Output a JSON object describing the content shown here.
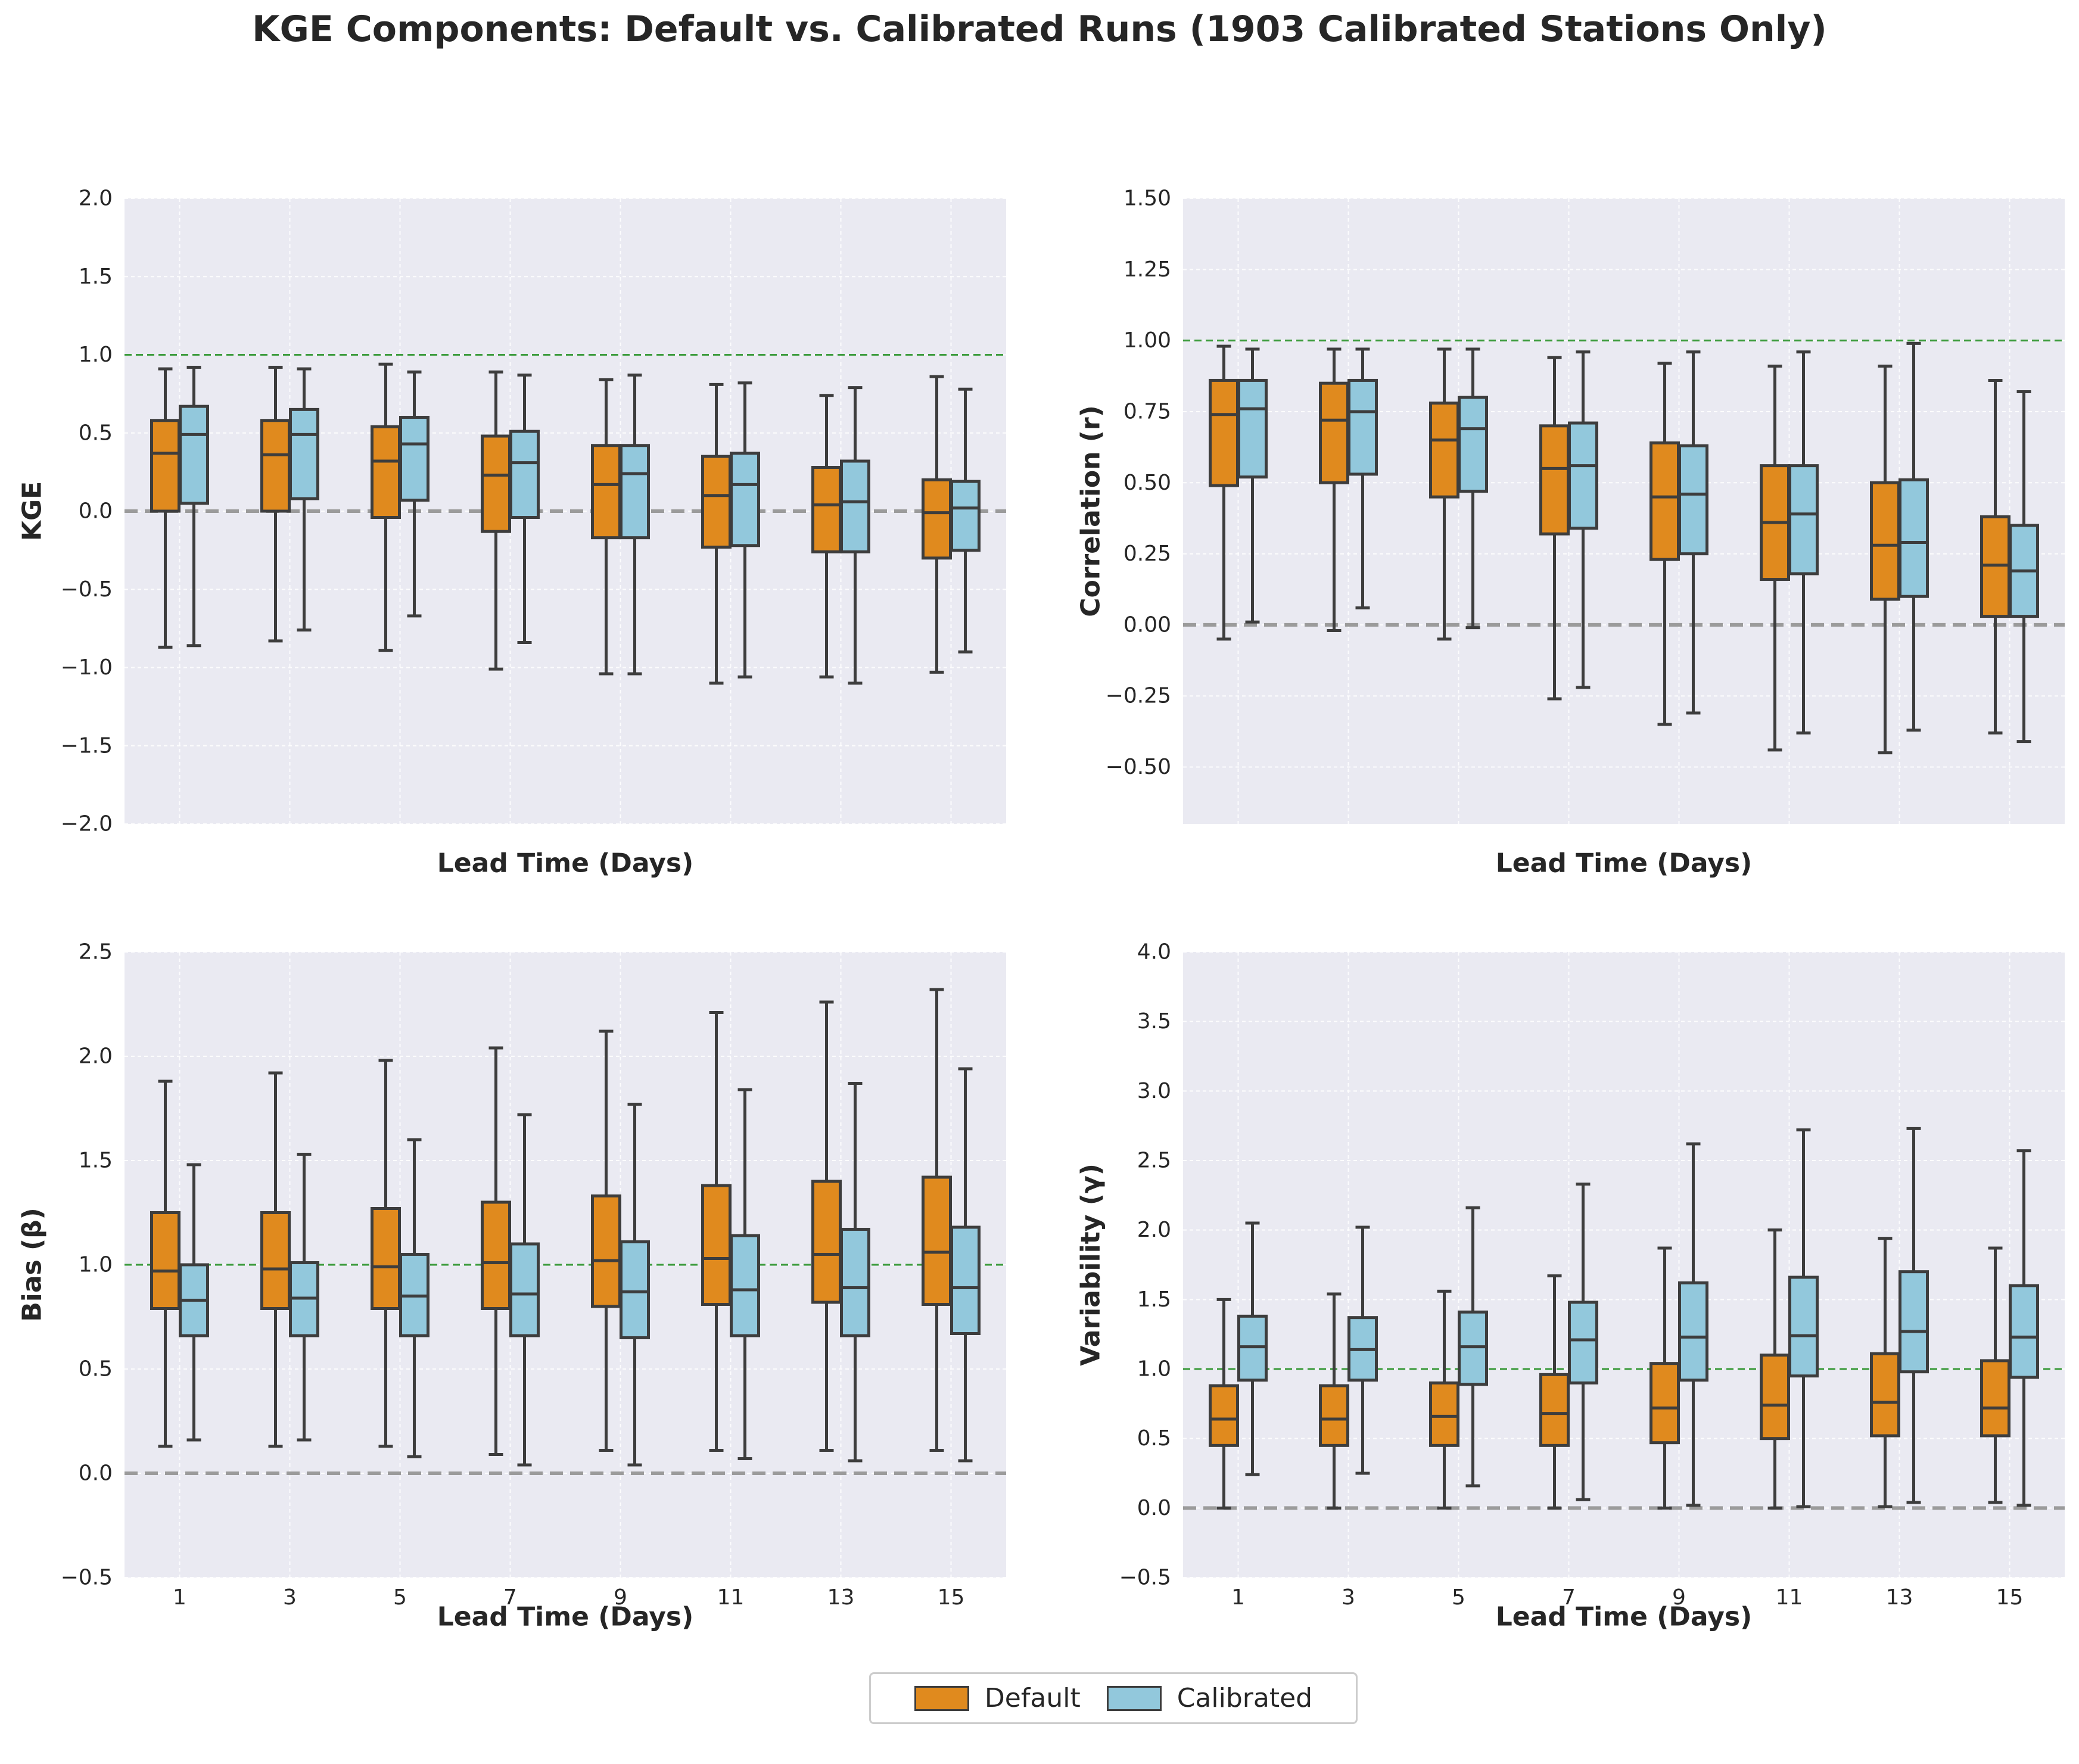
{
  "title": "KGE Components: Default vs. Calibrated Runs (1903 Calibrated Stations Only)",
  "colors": {
    "default": "#E08A1E",
    "calibrated": "#92C8DC",
    "plot_bg": "#EAEAF2",
    "reference": "#3A9A3A",
    "zero_line": "#9B9B9B",
    "box_edge": "#3D3D3D"
  },
  "legend": {
    "default_label": "Default",
    "calibrated_label": "Calibrated",
    "placement": "bottom-center"
  },
  "chart_data": [
    {
      "type": "box",
      "ylabel": "KGE",
      "xlabel": "Lead Time (Days)",
      "categories": [
        "1",
        "3",
        "5",
        "7",
        "9",
        "11",
        "13",
        "15"
      ],
      "ylim": [
        -2.0,
        2.0
      ],
      "yticks": [
        "2.0",
        "1.5",
        "1.0",
        "0.5",
        "0.0",
        "−0.5",
        "−1.0",
        "−1.5",
        "−2.0"
      ],
      "ytick_values": [
        2.0,
        1.5,
        1.0,
        0.5,
        0.0,
        -0.5,
        -1.0,
        -1.5,
        -2.0
      ],
      "reference_line": 1.0,
      "zero_line": 0.0,
      "series": [
        {
          "name": "Default",
          "boxes": [
            {
              "whislo": -0.87,
              "q1": 0.0,
              "med": 0.37,
              "q3": 0.58,
              "whishi": 0.91
            },
            {
              "whislo": -0.83,
              "q1": 0.0,
              "med": 0.36,
              "q3": 0.58,
              "whishi": 0.92
            },
            {
              "whislo": -0.89,
              "q1": -0.04,
              "med": 0.32,
              "q3": 0.54,
              "whishi": 0.94
            },
            {
              "whislo": -1.01,
              "q1": -0.13,
              "med": 0.23,
              "q3": 0.48,
              "whishi": 0.89
            },
            {
              "whislo": -1.04,
              "q1": -0.17,
              "med": 0.17,
              "q3": 0.42,
              "whishi": 0.84
            },
            {
              "whislo": -1.1,
              "q1": -0.23,
              "med": 0.1,
              "q3": 0.35,
              "whishi": 0.81
            },
            {
              "whislo": -1.06,
              "q1": -0.26,
              "med": 0.04,
              "q3": 0.28,
              "whishi": 0.74
            },
            {
              "whislo": -1.03,
              "q1": -0.3,
              "med": -0.01,
              "q3": 0.2,
              "whishi": 0.86
            }
          ]
        },
        {
          "name": "Calibrated",
          "boxes": [
            {
              "whislo": -0.86,
              "q1": 0.05,
              "med": 0.49,
              "q3": 0.67,
              "whishi": 0.92
            },
            {
              "whislo": -0.76,
              "q1": 0.08,
              "med": 0.49,
              "q3": 0.65,
              "whishi": 0.91
            },
            {
              "whislo": -0.67,
              "q1": 0.07,
              "med": 0.43,
              "q3": 0.6,
              "whishi": 0.89
            },
            {
              "whislo": -0.84,
              "q1": -0.04,
              "med": 0.31,
              "q3": 0.51,
              "whishi": 0.87
            },
            {
              "whislo": -1.04,
              "q1": -0.17,
              "med": 0.24,
              "q3": 0.42,
              "whishi": 0.87
            },
            {
              "whislo": -1.06,
              "q1": -0.22,
              "med": 0.17,
              "q3": 0.37,
              "whishi": 0.82
            },
            {
              "whislo": -1.1,
              "q1": -0.26,
              "med": 0.06,
              "q3": 0.32,
              "whishi": 0.79
            },
            {
              "whislo": -0.9,
              "q1": -0.25,
              "med": 0.02,
              "q3": 0.19,
              "whishi": 0.78
            }
          ]
        }
      ]
    },
    {
      "type": "box",
      "ylabel": "Correlation (r)",
      "xlabel": "Lead Time (Days)",
      "categories": [
        "1",
        "3",
        "5",
        "7",
        "9",
        "11",
        "13",
        "15"
      ],
      "ylim": [
        -0.7,
        1.5
      ],
      "yticks": [
        "1.50",
        "1.25",
        "1.00",
        "0.75",
        "0.50",
        "0.25",
        "0.00",
        "−0.25",
        "−0.50"
      ],
      "ytick_values": [
        1.5,
        1.25,
        1.0,
        0.75,
        0.5,
        0.25,
        0.0,
        -0.25,
        -0.5
      ],
      "reference_line": 1.0,
      "zero_line": 0.0,
      "series": [
        {
          "name": "Default",
          "boxes": [
            {
              "whislo": -0.05,
              "q1": 0.49,
              "med": 0.74,
              "q3": 0.86,
              "whishi": 0.98
            },
            {
              "whislo": -0.02,
              "q1": 0.5,
              "med": 0.72,
              "q3": 0.85,
              "whishi": 0.97
            },
            {
              "whislo": -0.05,
              "q1": 0.45,
              "med": 0.65,
              "q3": 0.78,
              "whishi": 0.97
            },
            {
              "whislo": -0.26,
              "q1": 0.32,
              "med": 0.55,
              "q3": 0.7,
              "whishi": 0.94
            },
            {
              "whislo": -0.35,
              "q1": 0.23,
              "med": 0.45,
              "q3": 0.64,
              "whishi": 0.92
            },
            {
              "whislo": -0.44,
              "q1": 0.16,
              "med": 0.36,
              "q3": 0.56,
              "whishi": 0.91
            },
            {
              "whislo": -0.45,
              "q1": 0.09,
              "med": 0.28,
              "q3": 0.5,
              "whishi": 0.91
            },
            {
              "whislo": -0.38,
              "q1": 0.03,
              "med": 0.21,
              "q3": 0.38,
              "whishi": 0.86
            }
          ]
        },
        {
          "name": "Calibrated",
          "boxes": [
            {
              "whislo": 0.01,
              "q1": 0.52,
              "med": 0.76,
              "q3": 0.86,
              "whishi": 0.97
            },
            {
              "whislo": 0.06,
              "q1": 0.53,
              "med": 0.75,
              "q3": 0.86,
              "whishi": 0.97
            },
            {
              "whislo": -0.01,
              "q1": 0.47,
              "med": 0.69,
              "q3": 0.8,
              "whishi": 0.97
            },
            {
              "whislo": -0.22,
              "q1": 0.34,
              "med": 0.56,
              "q3": 0.71,
              "whishi": 0.96
            },
            {
              "whislo": -0.31,
              "q1": 0.25,
              "med": 0.46,
              "q3": 0.63,
              "whishi": 0.96
            },
            {
              "whislo": -0.38,
              "q1": 0.18,
              "med": 0.39,
              "q3": 0.56,
              "whishi": 0.96
            },
            {
              "whislo": -0.37,
              "q1": 0.1,
              "med": 0.29,
              "q3": 0.51,
              "whishi": 0.99
            },
            {
              "whislo": -0.41,
              "q1": 0.03,
              "med": 0.19,
              "q3": 0.35,
              "whishi": 0.82
            }
          ]
        }
      ]
    },
    {
      "type": "box",
      "ylabel": "Bias (β)",
      "xlabel": "Lead Time (Days)",
      "categories": [
        "1",
        "3",
        "5",
        "7",
        "9",
        "11",
        "13",
        "15"
      ],
      "show_xticks": true,
      "ylim": [
        -0.5,
        2.5
      ],
      "yticks": [
        "2.5",
        "2.0",
        "1.5",
        "1.0",
        "0.5",
        "0.0",
        "−0.5"
      ],
      "ytick_values": [
        2.5,
        2.0,
        1.5,
        1.0,
        0.5,
        0.0,
        -0.5
      ],
      "reference_line": 1.0,
      "zero_line": 0.0,
      "series": [
        {
          "name": "Default",
          "boxes": [
            {
              "whislo": 0.13,
              "q1": 0.79,
              "med": 0.97,
              "q3": 1.25,
              "whishi": 1.88
            },
            {
              "whislo": 0.13,
              "q1": 0.79,
              "med": 0.98,
              "q3": 1.25,
              "whishi": 1.92
            },
            {
              "whislo": 0.13,
              "q1": 0.79,
              "med": 0.99,
              "q3": 1.27,
              "whishi": 1.98
            },
            {
              "whislo": 0.09,
              "q1": 0.79,
              "med": 1.01,
              "q3": 1.3,
              "whishi": 2.04
            },
            {
              "whislo": 0.11,
              "q1": 0.8,
              "med": 1.02,
              "q3": 1.33,
              "whishi": 2.12
            },
            {
              "whislo": 0.11,
              "q1": 0.81,
              "med": 1.03,
              "q3": 1.38,
              "whishi": 2.21
            },
            {
              "whislo": 0.11,
              "q1": 0.82,
              "med": 1.05,
              "q3": 1.4,
              "whishi": 2.26
            },
            {
              "whislo": 0.11,
              "q1": 0.81,
              "med": 1.06,
              "q3": 1.42,
              "whishi": 2.32
            }
          ]
        },
        {
          "name": "Calibrated",
          "boxes": [
            {
              "whislo": 0.16,
              "q1": 0.66,
              "med": 0.83,
              "q3": 1.0,
              "whishi": 1.48
            },
            {
              "whislo": 0.16,
              "q1": 0.66,
              "med": 0.84,
              "q3": 1.01,
              "whishi": 1.53
            },
            {
              "whislo": 0.08,
              "q1": 0.66,
              "med": 0.85,
              "q3": 1.05,
              "whishi": 1.6
            },
            {
              "whislo": 0.04,
              "q1": 0.66,
              "med": 0.86,
              "q3": 1.1,
              "whishi": 1.72
            },
            {
              "whislo": 0.04,
              "q1": 0.65,
              "med": 0.87,
              "q3": 1.11,
              "whishi": 1.77
            },
            {
              "whislo": 0.07,
              "q1": 0.66,
              "med": 0.88,
              "q3": 1.14,
              "whishi": 1.84
            },
            {
              "whislo": 0.06,
              "q1": 0.66,
              "med": 0.89,
              "q3": 1.17,
              "whishi": 1.87
            },
            {
              "whislo": 0.06,
              "q1": 0.67,
              "med": 0.89,
              "q3": 1.18,
              "whishi": 1.94
            }
          ]
        }
      ]
    },
    {
      "type": "box",
      "ylabel": "Variability (γ)",
      "xlabel": "Lead Time (Days)",
      "categories": [
        "1",
        "3",
        "5",
        "7",
        "9",
        "11",
        "13",
        "15"
      ],
      "show_xticks": true,
      "ylim": [
        -0.5,
        4.0
      ],
      "yticks": [
        "4.0",
        "3.5",
        "3.0",
        "2.5",
        "2.0",
        "1.5",
        "1.0",
        "0.5",
        "0.0",
        "−0.5"
      ],
      "ytick_values": [
        4.0,
        3.5,
        3.0,
        2.5,
        2.0,
        1.5,
        1.0,
        0.5,
        0.0,
        -0.5
      ],
      "reference_line": 1.0,
      "zero_line": 0.0,
      "series": [
        {
          "name": "Default",
          "boxes": [
            {
              "whislo": 0.0,
              "q1": 0.45,
              "med": 0.64,
              "q3": 0.88,
              "whishi": 1.5
            },
            {
              "whislo": 0.0,
              "q1": 0.45,
              "med": 0.64,
              "q3": 0.88,
              "whishi": 1.54
            },
            {
              "whislo": 0.0,
              "q1": 0.45,
              "med": 0.66,
              "q3": 0.9,
              "whishi": 1.56
            },
            {
              "whislo": 0.0,
              "q1": 0.45,
              "med": 0.68,
              "q3": 0.96,
              "whishi": 1.67
            },
            {
              "whislo": 0.0,
              "q1": 0.47,
              "med": 0.72,
              "q3": 1.04,
              "whishi": 1.87
            },
            {
              "whislo": 0.0,
              "q1": 0.5,
              "med": 0.74,
              "q3": 1.1,
              "whishi": 2.0
            },
            {
              "whislo": 0.01,
              "q1": 0.52,
              "med": 0.76,
              "q3": 1.11,
              "whishi": 1.94
            },
            {
              "whislo": 0.04,
              "q1": 0.52,
              "med": 0.72,
              "q3": 1.06,
              "whishi": 1.87
            }
          ]
        },
        {
          "name": "Calibrated",
          "boxes": [
            {
              "whislo": 0.24,
              "q1": 0.92,
              "med": 1.16,
              "q3": 1.38,
              "whishi": 2.05
            },
            {
              "whislo": 0.25,
              "q1": 0.92,
              "med": 1.14,
              "q3": 1.37,
              "whishi": 2.02
            },
            {
              "whislo": 0.16,
              "q1": 0.89,
              "med": 1.16,
              "q3": 1.41,
              "whishi": 2.16
            },
            {
              "whislo": 0.06,
              "q1": 0.9,
              "med": 1.21,
              "q3": 1.48,
              "whishi": 2.33
            },
            {
              "whislo": 0.02,
              "q1": 0.92,
              "med": 1.23,
              "q3": 1.62,
              "whishi": 2.62
            },
            {
              "whislo": 0.01,
              "q1": 0.95,
              "med": 1.24,
              "q3": 1.66,
              "whishi": 2.72
            },
            {
              "whislo": 0.04,
              "q1": 0.98,
              "med": 1.27,
              "q3": 1.7,
              "whishi": 2.73
            },
            {
              "whislo": 0.02,
              "q1": 0.94,
              "med": 1.23,
              "q3": 1.6,
              "whishi": 2.57
            }
          ]
        }
      ]
    }
  ]
}
